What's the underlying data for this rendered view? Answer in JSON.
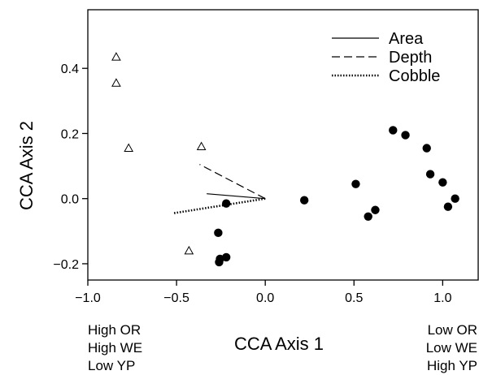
{
  "chart_data": {
    "type": "scatter",
    "title": "",
    "xlabel": "CCA Axis 1",
    "ylabel": "CCA Axis 2",
    "xlim": [
      -1.0,
      1.2
    ],
    "ylim": [
      -0.25,
      0.58
    ],
    "x_ticks": [
      -1.0,
      -0.5,
      0.0,
      0.5,
      1.0
    ],
    "x_tick_labels": [
      "−1.0",
      "−0.5",
      "0.0",
      "0.5",
      "1.0"
    ],
    "y_ticks": [
      -0.2,
      0.0,
      0.2,
      0.4
    ],
    "y_tick_labels": [
      "−0.2",
      "0.0",
      "0.2",
      "0.4"
    ],
    "grid": false,
    "legend_position": "top-right",
    "series": [
      {
        "marker": "open-triangle",
        "points": [
          {
            "x": -0.84,
            "y": 0.435
          },
          {
            "x": -0.84,
            "y": 0.355
          },
          {
            "x": -0.77,
            "y": 0.155
          },
          {
            "x": -0.36,
            "y": 0.16
          },
          {
            "x": -0.43,
            "y": -0.16
          }
        ]
      },
      {
        "marker": "filled-circle",
        "points": [
          {
            "x": -0.22,
            "y": -0.015
          },
          {
            "x": -0.265,
            "y": -0.105
          },
          {
            "x": -0.255,
            "y": -0.185
          },
          {
            "x": -0.26,
            "y": -0.195
          },
          {
            "x": -0.22,
            "y": -0.18
          },
          {
            "x": 0.22,
            "y": -0.005
          },
          {
            "x": 0.51,
            "y": 0.045
          },
          {
            "x": 0.58,
            "y": -0.055
          },
          {
            "x": 0.62,
            "y": -0.035
          },
          {
            "x": 0.72,
            "y": 0.21
          },
          {
            "x": 0.79,
            "y": 0.195
          },
          {
            "x": 0.91,
            "y": 0.155
          },
          {
            "x": 0.93,
            "y": 0.075
          },
          {
            "x": 1.0,
            "y": 0.05
          },
          {
            "x": 1.03,
            "y": -0.025
          },
          {
            "x": 1.07,
            "y": 0.0
          }
        ]
      }
    ],
    "vectors": [
      {
        "name": "Area",
        "style": "solid",
        "x": -0.33,
        "y": 0.015
      },
      {
        "name": "Depth",
        "style": "dashed",
        "x": -0.37,
        "y": 0.105
      },
      {
        "name": "Cobble",
        "style": "dotted",
        "x": -0.52,
        "y": -0.045
      }
    ],
    "legend": [
      {
        "label": "Area",
        "style": "solid"
      },
      {
        "label": "Depth",
        "style": "dashed"
      },
      {
        "label": "Cobble",
        "style": "dotted"
      }
    ]
  },
  "annotations": {
    "left": [
      "High OR",
      "High WE",
      "Low YP"
    ],
    "right": [
      "Low OR",
      "Low WE",
      "High YP"
    ]
  }
}
